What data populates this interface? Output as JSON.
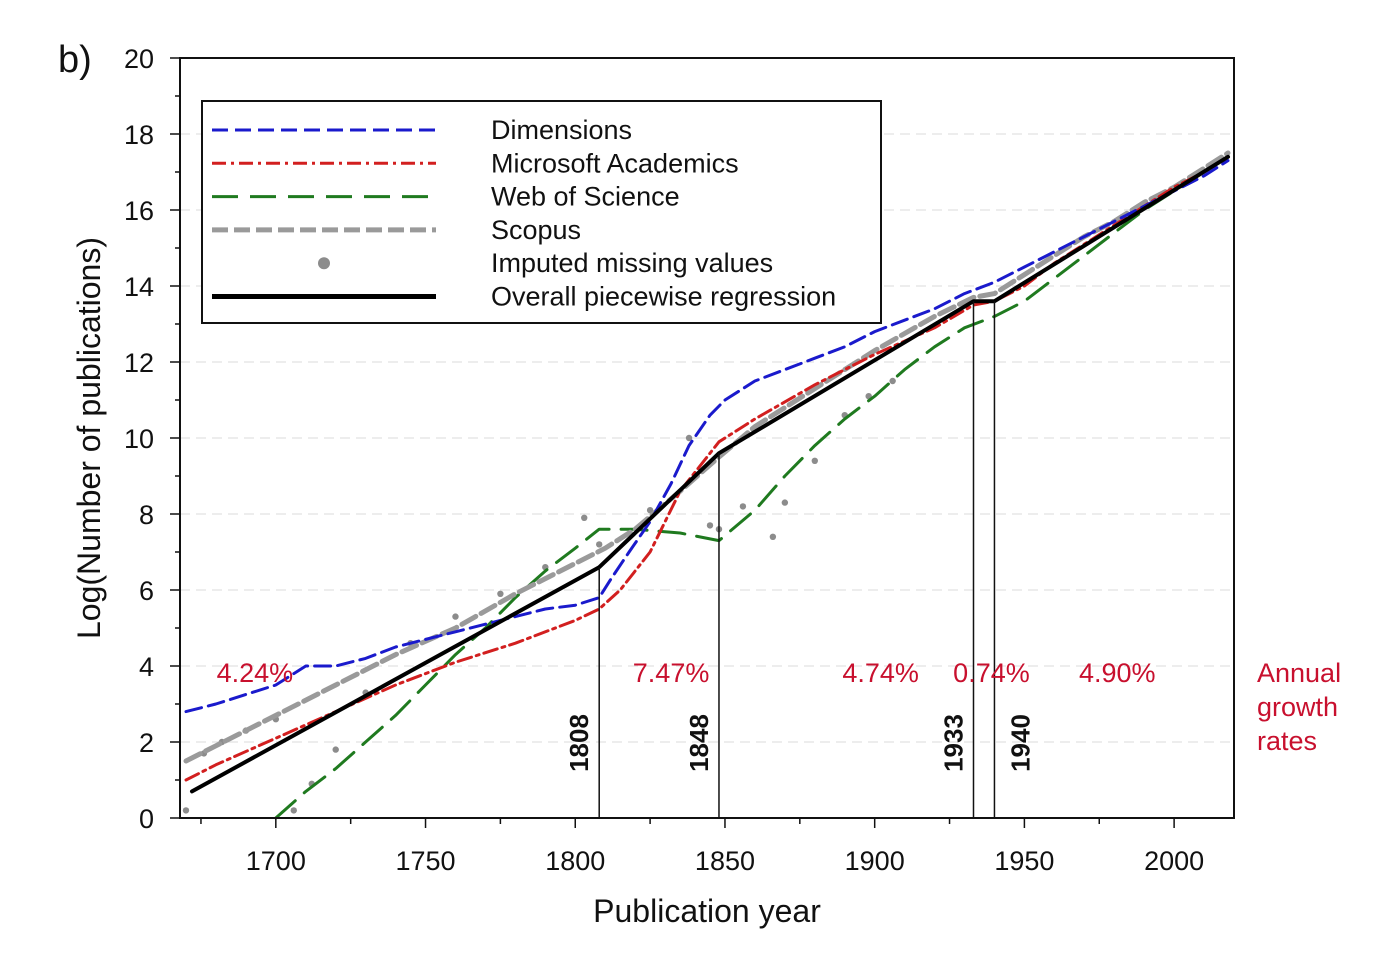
{
  "panel_label": "b)",
  "chart_data": {
    "type": "line",
    "title": "",
    "xlabel": "Publication year",
    "ylabel": "Log(Number of publications)",
    "xlim": [
      1668,
      2020
    ],
    "ylim": [
      0,
      20
    ],
    "x_ticks": [
      1700,
      1750,
      1800,
      1850,
      1900,
      1950,
      2000
    ],
    "y_ticks": [
      0,
      2,
      4,
      6,
      8,
      10,
      12,
      14,
      16,
      18,
      20
    ],
    "legend_position": "top-left",
    "series": [
      {
        "name": "Dimensions",
        "color": "#1a1acc",
        "style": "dashed",
        "x": [
          1670,
          1680,
          1700,
          1710,
          1720,
          1730,
          1740,
          1750,
          1760,
          1770,
          1780,
          1790,
          1800,
          1808,
          1812,
          1818,
          1825,
          1832,
          1838,
          1845,
          1850,
          1860,
          1870,
          1880,
          1890,
          1900,
          1910,
          1920,
          1930,
          1940,
          1950,
          1960,
          1970,
          1980,
          1990,
          2000,
          2010,
          2018
        ],
        "y": [
          2.8,
          3.0,
          3.5,
          4.0,
          4.0,
          4.2,
          4.5,
          4.7,
          4.9,
          5.1,
          5.3,
          5.5,
          5.6,
          5.8,
          6.3,
          7.0,
          7.8,
          8.8,
          9.8,
          10.6,
          11.0,
          11.5,
          11.8,
          12.1,
          12.4,
          12.8,
          13.1,
          13.4,
          13.8,
          14.1,
          14.5,
          14.9,
          15.3,
          15.7,
          16.1,
          16.5,
          16.9,
          17.3
        ]
      },
      {
        "name": "Microsoft Academics",
        "color": "#d21f1f",
        "style": "dashdot",
        "x": [
          1670,
          1680,
          1700,
          1720,
          1740,
          1760,
          1780,
          1800,
          1808,
          1815,
          1825,
          1835,
          1848,
          1860,
          1880,
          1900,
          1920,
          1933,
          1940,
          1950,
          1960,
          1970,
          1980,
          1990,
          2000,
          2010,
          2018
        ],
        "y": [
          1.0,
          1.4,
          2.1,
          2.8,
          3.5,
          4.1,
          4.6,
          5.2,
          5.5,
          6.0,
          7.0,
          8.6,
          9.9,
          10.5,
          11.4,
          12.2,
          12.9,
          13.5,
          13.6,
          14.0,
          14.6,
          15.1,
          15.6,
          16.1,
          16.6,
          17.0,
          17.4
        ]
      },
      {
        "name": "Web of Science",
        "color": "#1f7a1f",
        "style": "longdash",
        "x": [
          1700,
          1710,
          1720,
          1730,
          1740,
          1750,
          1760,
          1770,
          1780,
          1790,
          1800,
          1808,
          1820,
          1835,
          1848,
          1860,
          1870,
          1880,
          1890,
          1900,
          1910,
          1920,
          1930,
          1940,
          1950,
          1960,
          1970,
          1980,
          1990,
          2000,
          2010,
          2018
        ],
        "y": [
          0.0,
          0.7,
          1.3,
          2.0,
          2.7,
          3.5,
          4.3,
          5.0,
          5.8,
          6.5,
          7.1,
          7.6,
          7.6,
          7.5,
          7.3,
          8.1,
          9.0,
          9.8,
          10.5,
          11.1,
          11.8,
          12.4,
          12.9,
          13.2,
          13.6,
          14.2,
          14.8,
          15.4,
          16.0,
          16.5,
          17.0,
          17.4
        ]
      },
      {
        "name": "Scopus",
        "color": "#9a9a9a",
        "style": "dashed-thick",
        "x": [
          1670,
          1680,
          1700,
          1720,
          1740,
          1760,
          1780,
          1800,
          1810,
          1820,
          1835,
          1848,
          1860,
          1880,
          1900,
          1920,
          1933,
          1940,
          1950,
          1960,
          1970,
          1980,
          1990,
          2000,
          2010,
          2018
        ],
        "y": [
          1.5,
          1.9,
          2.7,
          3.5,
          4.3,
          5.0,
          5.9,
          6.7,
          7.1,
          7.6,
          8.6,
          9.5,
          10.3,
          11.3,
          12.3,
          13.2,
          13.7,
          13.8,
          14.3,
          14.8,
          15.3,
          15.7,
          16.2,
          16.6,
          17.1,
          17.5
        ]
      },
      {
        "name": "Imputed missing values",
        "color": "#8c8c8c",
        "style": "dots",
        "x": [
          1670,
          1676,
          1682,
          1690,
          1700,
          1706,
          1712,
          1720,
          1730,
          1745,
          1760,
          1775,
          1790,
          1803,
          1808,
          1825,
          1838,
          1845,
          1848,
          1856,
          1866,
          1870,
          1880,
          1890,
          1898,
          1906
        ],
        "y": [
          0.2,
          1.7,
          2.0,
          2.3,
          2.6,
          0.2,
          0.9,
          1.8,
          3.3,
          4.6,
          5.3,
          5.9,
          6.6,
          7.9,
          7.2,
          8.1,
          10.0,
          7.7,
          7.6,
          8.2,
          7.4,
          8.3,
          9.4,
          10.6,
          11.1,
          11.5
        ]
      },
      {
        "name": "Overall piecewise regression",
        "color": "#000000",
        "style": "solid",
        "x": [
          1672,
          1808,
          1848,
          1933,
          1940,
          2018
        ],
        "y": [
          0.7,
          6.6,
          9.6,
          13.6,
          13.6,
          17.4
        ]
      }
    ],
    "breakpoints": [
      "1808",
      "1848",
      "1933",
      "1940"
    ],
    "growth_rates": [
      "4.24%",
      "7.47%",
      "4.74%",
      "0.74%",
      "4.90%"
    ],
    "growth_rates_label": [
      "Annual",
      "growth",
      "rates"
    ]
  }
}
